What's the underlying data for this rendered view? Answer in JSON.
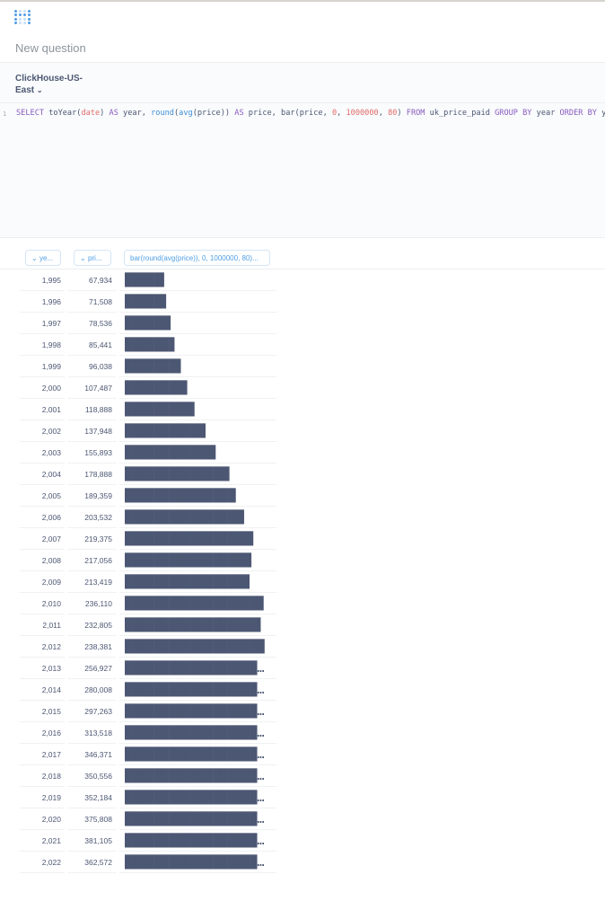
{
  "header": {
    "title": "New question",
    "logo": "metabase-logo"
  },
  "database": {
    "name_line1": "ClickHouse-US-",
    "name_line2": "East",
    "chevron": "chevron-down-icon"
  },
  "editor": {
    "line_number": "1",
    "query": "SELECT toYear(date) AS year, round(avg(price)) AS price, bar(price, 0, 1000000, 80) FROM uk_price_paid GROUP BY year ORDER BY year;"
  },
  "columns": [
    {
      "label": "ye..."
    },
    {
      "label": "pri..."
    },
    {
      "label": "bar(round(avg(price)), 0, 1000000, 80)..."
    }
  ],
  "colors": {
    "accent": "#509ee3",
    "text": "#4c5773"
  },
  "rows": [
    {
      "year": "1,995",
      "price": "67,934",
      "bar": "█████▍"
    },
    {
      "year": "1,996",
      "price": "71,508",
      "bar": "█████▋"
    },
    {
      "year": "1,997",
      "price": "78,536",
      "bar": "██████▎"
    },
    {
      "year": "1,998",
      "price": "85,441",
      "bar": "██████▊"
    },
    {
      "year": "1,999",
      "price": "96,038",
      "bar": "███████▋"
    },
    {
      "year": "2,000",
      "price": "107,487",
      "bar": "████████▌"
    },
    {
      "year": "2,001",
      "price": "118,888",
      "bar": "█████████▌"
    },
    {
      "year": "2,002",
      "price": "137,948",
      "bar": "███████████"
    },
    {
      "year": "2,003",
      "price": "155,893",
      "bar": "████████████▍"
    },
    {
      "year": "2,004",
      "price": "178,888",
      "bar": "██████████████▎"
    },
    {
      "year": "2,005",
      "price": "189,359",
      "bar": "███████████████▏"
    },
    {
      "year": "2,006",
      "price": "203,532",
      "bar": "████████████████▎"
    },
    {
      "year": "2,007",
      "price": "219,375",
      "bar": "█████████████████▌"
    },
    {
      "year": "2,008",
      "price": "217,056",
      "bar": "█████████████████▎"
    },
    {
      "year": "2,009",
      "price": "213,419",
      "bar": "█████████████████"
    },
    {
      "year": "2,010",
      "price": "236,110",
      "bar": "██████████████████▉"
    },
    {
      "year": "2,011",
      "price": "232,805",
      "bar": "██████████████████▌"
    },
    {
      "year": "2,012",
      "price": "238,381",
      "bar": "███████████████████"
    },
    {
      "year": "2,013",
      "price": "256,927",
      "bar": "████████████████████▌"
    },
    {
      "year": "2,014",
      "price": "280,008",
      "bar": "██████████████████████▍"
    },
    {
      "year": "2,015",
      "price": "297,263",
      "bar": "███████████████████████▊"
    },
    {
      "year": "2,016",
      "price": "313,518",
      "bar": "█████████████████████████"
    },
    {
      "year": "2,017",
      "price": "346,371",
      "bar": "███████████████████████████▋"
    },
    {
      "year": "2,018",
      "price": "350,556",
      "bar": "████████████████████████████"
    },
    {
      "year": "2,019",
      "price": "352,184",
      "bar": "████████████████████████████▏"
    },
    {
      "year": "2,020",
      "price": "375,808",
      "bar": "██████████████████████████████"
    },
    {
      "year": "2,021",
      "price": "381,105",
      "bar": "██████████████████████████████▍"
    },
    {
      "year": "2,022",
      "price": "362,572",
      "bar": "█████████████████████████████"
    }
  ]
}
